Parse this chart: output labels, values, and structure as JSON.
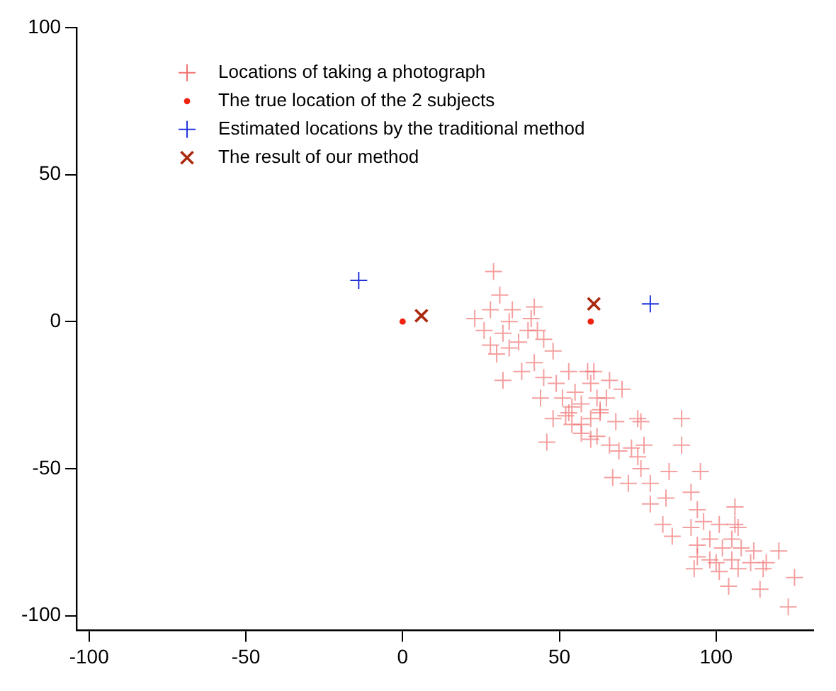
{
  "chart_data": {
    "type": "scatter",
    "xlim": [
      -104,
      131
    ],
    "ylim": [
      -105,
      100
    ],
    "xticks": [
      -100,
      -50,
      0,
      50,
      100
    ],
    "yticks": [
      -100,
      -50,
      0,
      50,
      100
    ],
    "grid": false,
    "legend": "top",
    "series": [
      {
        "name": "Locations of taking a photograph",
        "color": "#f07070",
        "marker": "plus",
        "x": [
          29,
          31,
          28,
          35,
          42,
          23,
          34,
          41,
          28,
          32,
          40,
          45,
          48,
          34,
          42,
          32,
          38,
          45,
          49,
          59,
          60,
          70,
          44,
          51,
          55,
          54,
          57,
          62,
          65,
          48,
          52,
          60,
          63,
          68,
          76,
          46,
          57,
          62,
          66,
          54,
          77,
          26,
          30,
          37,
          43,
          53,
          61,
          66,
          63,
          57,
          53,
          60,
          75,
          73,
          69,
          89,
          89,
          75,
          95,
          76,
          67,
          72,
          79,
          85,
          92,
          79,
          84,
          106,
          94,
          96,
          83,
          86,
          92,
          101,
          106,
          107,
          98,
          105,
          94,
          102,
          108,
          112,
          98,
          94,
          100,
          105,
          111,
          116,
          120,
          93,
          101,
          107,
          115,
          125,
          104,
          114,
          123
        ],
        "values": [
          17,
          9,
          4,
          4,
          5,
          1,
          0,
          1,
          -8,
          -4,
          -3,
          -6,
          -10,
          -9,
          -14,
          -20,
          -17,
          -19,
          -21,
          -17,
          -21,
          -23,
          -26,
          -26,
          -24,
          -29,
          -28,
          -26,
          -26,
          -33,
          -32,
          -33,
          -31,
          -34,
          -34,
          -41,
          -38,
          -39,
          -42,
          -35,
          -42,
          -3,
          -11,
          -7,
          -3,
          -17,
          -17,
          -20,
          -30,
          -35,
          -31,
          -40,
          -33,
          -43,
          -44,
          -33,
          -42,
          -46,
          -51,
          -50,
          -53,
          -55,
          -55,
          -51,
          -58,
          -62,
          -60,
          -63,
          -64,
          -68,
          -69,
          -73,
          -70,
          -69,
          -69,
          -70,
          -74,
          -74,
          -76,
          -77,
          -77,
          -78,
          -81,
          -80,
          -82,
          -81,
          -82,
          -82,
          -78,
          -84,
          -85,
          -84,
          -84,
          -87,
          -90,
          -91,
          -97
        ]
      },
      {
        "name": "The true location of the 2 subjects",
        "color": "#ee2211",
        "marker": "circle",
        "x": [
          0,
          60
        ],
        "values": [
          0,
          0
        ]
      },
      {
        "name": "Estimated locations by the traditional method",
        "color": "#2233dd",
        "marker": "plus",
        "x": [
          -14,
          79
        ],
        "values": [
          14,
          6
        ]
      },
      {
        "name": "The result of our method",
        "color": "#aa2a10",
        "marker": "cross",
        "x": [
          6,
          61
        ],
        "values": [
          2,
          6
        ]
      }
    ]
  }
}
